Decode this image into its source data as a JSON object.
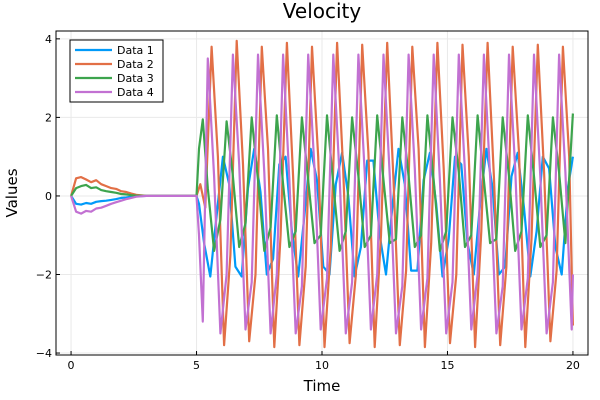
{
  "chart_data": {
    "type": "line",
    "title": "Velocity",
    "xlabel": "Time",
    "ylabel": "Values",
    "xlim": [
      -0.6,
      20.6
    ],
    "ylim": [
      -4.05,
      4.2
    ],
    "xticks": [
      0,
      5,
      10,
      15,
      20
    ],
    "xtick_labels": [
      "0",
      "5",
      "10",
      "15",
      "20"
    ],
    "yticks": [
      -4,
      -2,
      0,
      2,
      4
    ],
    "ytick_labels": [
      "−4",
      "−2",
      "0",
      "2",
      "4"
    ],
    "grid": true,
    "legend_position": "top-left",
    "series": [
      {
        "name": "Data 1",
        "color": "#009af9",
        "x": [
          0,
          0.2,
          0.4,
          0.6,
          0.8,
          1.0,
          1.2,
          1.4,
          1.6,
          1.8,
          2.0,
          2.2,
          2.4,
          2.6,
          3.0,
          4.0,
          5.0,
          5.1,
          5.3,
          5.55,
          5.8,
          6.05,
          6.3,
          6.55,
          6.8,
          7.05,
          7.3,
          7.55,
          7.8,
          8.05,
          8.3,
          8.55,
          8.8,
          9.05,
          9.3,
          9.55,
          9.8,
          10.05,
          10.3,
          10.55,
          10.8,
          11.05,
          11.3,
          11.55,
          11.8,
          12.05,
          12.3,
          12.55,
          12.8,
          13.05,
          13.3,
          13.55,
          13.8,
          14.05,
          14.3,
          14.55,
          14.8,
          15.05,
          15.3,
          15.55,
          15.8,
          16.05,
          16.3,
          16.55,
          16.8,
          17.05,
          17.3,
          17.55,
          17.8,
          18.05,
          18.3,
          18.55,
          18.8,
          19.05,
          19.3,
          19.55,
          19.8,
          20.0
        ],
        "y": [
          0,
          -0.2,
          -0.22,
          -0.18,
          -0.2,
          -0.15,
          -0.13,
          -0.12,
          -0.1,
          -0.08,
          -0.05,
          -0.04,
          -0.02,
          -0.01,
          0,
          0,
          0,
          -0.2,
          -1.2,
          -2.05,
          -0.5,
          1.0,
          0.3,
          -1.8,
          -2.05,
          0.2,
          1.2,
          0.1,
          -2.0,
          -1.6,
          0.8,
          1.0,
          -0.9,
          -2.05,
          -0.5,
          1.2,
          0.4,
          -1.8,
          -2.0,
          0.3,
          1.1,
          0.0,
          -2.05,
          -1.3,
          0.9,
          0.9,
          -1.0,
          -2.0,
          -0.3,
          1.2,
          0.3,
          -1.9,
          -1.9,
          0.4,
          1.1,
          -0.2,
          -2.05,
          -1.1,
          1.0,
          0.8,
          -1.2,
          -2.0,
          -0.2,
          1.2,
          0.2,
          -2.0,
          -1.8,
          0.5,
          1.1,
          -0.3,
          -2.05,
          -0.9,
          1.0,
          0.7,
          -1.3,
          -2.0,
          0.2,
          1.0
        ]
      },
      {
        "name": "Data 2",
        "color": "#e26f46",
        "x": [
          0,
          0.2,
          0.4,
          0.6,
          0.8,
          1.0,
          1.2,
          1.4,
          1.6,
          1.8,
          2.0,
          2.2,
          2.4,
          2.6,
          3.0,
          4.0,
          5.0,
          5.15,
          5.35,
          5.6,
          5.85,
          6.1,
          6.35,
          6.6,
          6.85,
          7.1,
          7.35,
          7.6,
          7.85,
          8.1,
          8.35,
          8.6,
          8.85,
          9.1,
          9.35,
          9.6,
          9.85,
          10.1,
          10.35,
          10.6,
          10.85,
          11.1,
          11.35,
          11.6,
          11.85,
          12.1,
          12.35,
          12.6,
          12.85,
          13.1,
          13.35,
          13.6,
          13.85,
          14.1,
          14.35,
          14.6,
          14.85,
          15.1,
          15.35,
          15.6,
          15.85,
          16.1,
          16.35,
          16.6,
          16.85,
          17.1,
          17.35,
          17.6,
          17.85,
          18.1,
          18.35,
          18.6,
          18.85,
          19.1,
          19.35,
          19.6,
          19.85,
          20.0
        ],
        "y": [
          0,
          0.45,
          0.48,
          0.42,
          0.35,
          0.4,
          0.3,
          0.25,
          0.2,
          0.18,
          0.12,
          0.1,
          0.06,
          0.03,
          0,
          0,
          0,
          0.3,
          -0.3,
          3.8,
          1.0,
          -3.8,
          -1.5,
          3.95,
          0.8,
          -3.7,
          -2.0,
          3.8,
          1.2,
          -3.85,
          -1.0,
          3.9,
          0.5,
          -3.8,
          -1.8,
          3.8,
          1.0,
          -3.85,
          -1.3,
          3.9,
          0.6,
          -3.75,
          -2.0,
          3.85,
          1.1,
          -3.85,
          -1.0,
          3.9,
          0.4,
          -3.8,
          -1.9,
          3.8,
          1.2,
          -3.85,
          -1.2,
          3.9,
          0.7,
          -3.75,
          -2.0,
          3.85,
          1.0,
          -3.85,
          -0.9,
          3.9,
          0.5,
          -3.8,
          -1.8,
          3.8,
          1.1,
          -3.85,
          -1.1,
          3.85,
          0.6,
          -3.7,
          -1.9,
          3.8,
          1.0,
          -3.3
        ]
      },
      {
        "name": "Data 3",
        "color": "#3da44d",
        "x": [
          0,
          0.2,
          0.4,
          0.6,
          0.8,
          1.0,
          1.2,
          1.4,
          1.6,
          1.8,
          2.0,
          2.2,
          2.4,
          2.6,
          3.0,
          4.0,
          5.0,
          5.1,
          5.25,
          5.45,
          5.7,
          5.95,
          6.2,
          6.45,
          6.7,
          6.95,
          7.2,
          7.45,
          7.7,
          7.95,
          8.2,
          8.45,
          8.7,
          8.95,
          9.2,
          9.45,
          9.7,
          9.95,
          10.2,
          10.45,
          10.7,
          10.95,
          11.2,
          11.45,
          11.7,
          11.95,
          12.2,
          12.45,
          12.7,
          12.95,
          13.2,
          13.45,
          13.7,
          13.95,
          14.2,
          14.45,
          14.7,
          14.95,
          15.2,
          15.45,
          15.7,
          15.95,
          16.2,
          16.45,
          16.7,
          16.95,
          17.2,
          17.45,
          17.7,
          17.95,
          18.2,
          18.45,
          18.7,
          18.95,
          19.2,
          19.45,
          19.7,
          20.0
        ],
        "y": [
          0,
          0.2,
          0.25,
          0.28,
          0.2,
          0.22,
          0.15,
          0.12,
          0.1,
          0.08,
          0.05,
          0.04,
          0.02,
          0.01,
          0,
          0,
          0,
          1.2,
          1.95,
          0.2,
          -1.4,
          -0.6,
          1.9,
          0.5,
          -1.3,
          -0.7,
          2.0,
          0.4,
          -1.4,
          -0.8,
          2.05,
          0.3,
          -1.3,
          -0.9,
          2.0,
          0.4,
          -1.2,
          -1.0,
          2.05,
          0.3,
          -1.4,
          -0.9,
          2.0,
          0.5,
          -1.3,
          -1.0,
          2.05,
          0.4,
          -1.2,
          -1.1,
          2.0,
          0.5,
          -1.3,
          -1.0,
          2.05,
          0.4,
          -1.4,
          -0.9,
          2.0,
          0.6,
          -1.3,
          -1.0,
          2.05,
          0.4,
          -1.2,
          -1.1,
          2.0,
          0.5,
          -1.4,
          -0.9,
          2.05,
          0.5,
          -1.3,
          -1.0,
          2.0,
          0.6,
          -1.2,
          2.1
        ]
      },
      {
        "name": "Data 4",
        "color": "#c271d2",
        "x": [
          0,
          0.2,
          0.4,
          0.6,
          0.8,
          1.0,
          1.2,
          1.4,
          1.6,
          1.8,
          2.0,
          2.2,
          2.4,
          2.6,
          3.0,
          4.0,
          5.0,
          5.1,
          5.25,
          5.45,
          5.7,
          5.95,
          6.2,
          6.45,
          6.7,
          6.95,
          7.2,
          7.45,
          7.7,
          7.95,
          8.2,
          8.45,
          8.7,
          8.95,
          9.2,
          9.45,
          9.7,
          9.95,
          10.2,
          10.45,
          10.7,
          10.95,
          11.2,
          11.45,
          11.7,
          11.95,
          12.2,
          12.45,
          12.7,
          12.95,
          13.2,
          13.45,
          13.7,
          13.95,
          14.2,
          14.45,
          14.7,
          14.95,
          15.2,
          15.45,
          15.7,
          15.95,
          16.2,
          16.45,
          16.7,
          16.95,
          17.2,
          17.45,
          17.7,
          17.95,
          18.2,
          18.45,
          18.7,
          18.95,
          19.2,
          19.45,
          19.7,
          19.95,
          20.0
        ],
        "y": [
          0,
          -0.4,
          -0.45,
          -0.38,
          -0.4,
          -0.32,
          -0.3,
          -0.25,
          -0.2,
          -0.16,
          -0.12,
          -0.08,
          -0.05,
          -0.02,
          0,
          0,
          0,
          -1.0,
          -3.2,
          3.5,
          0.5,
          -3.5,
          -2.0,
          3.6,
          0.8,
          -3.4,
          -2.2,
          3.6,
          0.6,
          -3.5,
          -2.0,
          3.6,
          0.4,
          -3.5,
          -2.3,
          3.6,
          0.7,
          -3.4,
          -2.1,
          3.6,
          0.5,
          -3.5,
          -2.2,
          3.6,
          0.6,
          -3.4,
          -2.0,
          3.6,
          0.5,
          -3.5,
          -2.3,
          3.6,
          0.7,
          -3.4,
          -2.1,
          3.6,
          0.4,
          -3.5,
          -2.2,
          3.6,
          0.6,
          -3.4,
          -2.0,
          3.6,
          0.5,
          -3.5,
          -2.3,
          3.6,
          0.7,
          -3.4,
          -2.1,
          3.6,
          0.5,
          -3.5,
          -2.2,
          3.6,
          0.6,
          -3.4,
          -2.0
        ]
      }
    ]
  }
}
